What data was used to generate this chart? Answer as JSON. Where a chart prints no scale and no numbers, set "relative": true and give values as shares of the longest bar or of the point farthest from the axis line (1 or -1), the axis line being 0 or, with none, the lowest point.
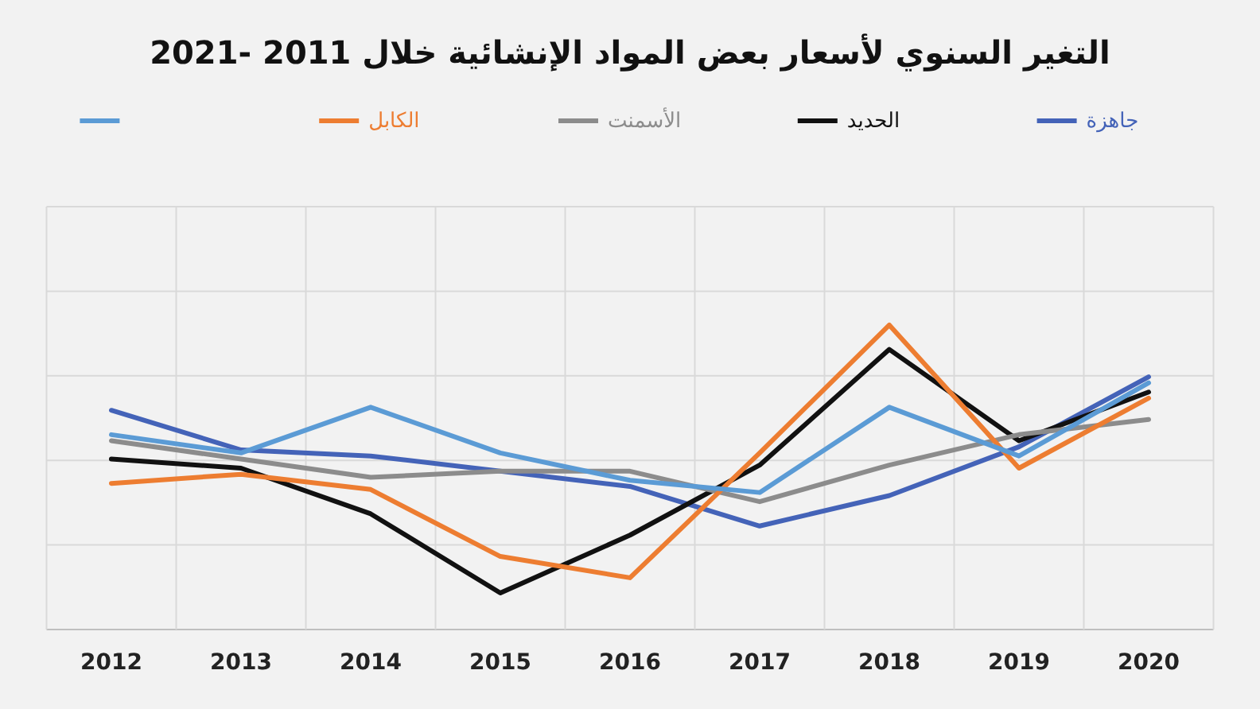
{
  "chart_data": {
    "type": "line",
    "title": "التغير السنوي لأسعار بعض المواد الإنشائية خلال 2011 -2021",
    "categories": [
      "2012",
      "2013",
      "2014",
      "2015",
      "2016",
      "2017",
      "2018",
      "2019",
      "2020"
    ],
    "relative": true,
    "grid": true,
    "legend": "top",
    "series": [
      {
        "name": "جاهزة",
        "color": "#4463b8",
        "values": [
          0.72,
          0.59,
          0.57,
          0.52,
          0.47,
          0.34,
          0.44,
          0.6,
          0.83
        ]
      },
      {
        "name": "الحديد",
        "color": "#111111",
        "values": [
          0.56,
          0.53,
          0.38,
          0.12,
          0.31,
          0.54,
          0.92,
          0.62,
          0.78
        ]
      },
      {
        "name": "الأسمنت",
        "color": "#8c8c8c",
        "values": [
          0.62,
          0.56,
          0.5,
          0.52,
          0.52,
          0.42,
          0.54,
          0.64,
          0.69
        ]
      },
      {
        "name": "الكابل",
        "color": "#ed7d31",
        "values": [
          0.48,
          0.51,
          0.46,
          0.24,
          0.17,
          0.58,
          1,
          0.53,
          0.76
        ]
      },
      {
        "color": "#5b9bd5",
        "values": [
          0.64,
          0.58,
          0.73,
          0.58,
          0.49,
          0.45,
          0.73,
          0.57,
          0.81
        ]
      }
    ]
  }
}
